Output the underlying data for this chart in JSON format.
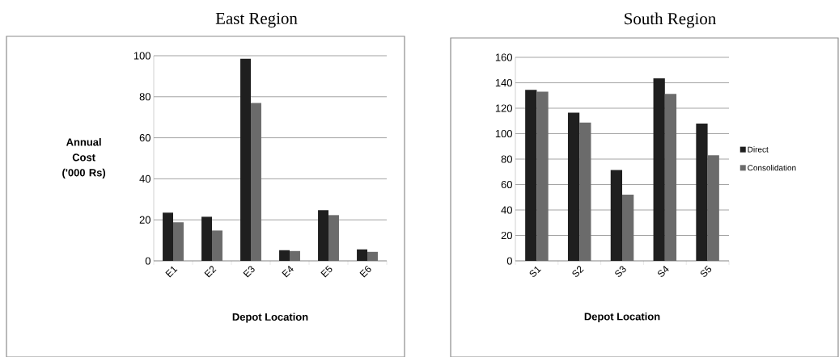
{
  "chart_data": [
    {
      "type": "bar",
      "title": "East Region",
      "xlabel": "Depot Location",
      "ylabel": "Annual Cost ('000 Rs)",
      "categories": [
        "E1",
        "E2",
        "E3",
        "E4",
        "E5",
        "E6"
      ],
      "series": [
        {
          "color": "#1f1f1f",
          "values": [
            23.5,
            21.5,
            98.5,
            5.2,
            24.7,
            5.6
          ]
        },
        {
          "color": "#6b6b6b",
          "values": [
            18.8,
            14.8,
            77,
            4.8,
            22.3,
            4.4
          ]
        }
      ],
      "ylim": [
        0,
        100
      ],
      "yticks": [
        0,
        20,
        40,
        60,
        80,
        100
      ],
      "grid": "y",
      "legend": false
    },
    {
      "type": "bar",
      "title": "South Region",
      "xlabel": "Depot Location",
      "categories": [
        "S1",
        "S2",
        "S3",
        "S4",
        "S5"
      ],
      "series": [
        {
          "name": "Direct",
          "color": "#1f1f1f",
          "values": [
            134.5,
            116.5,
            71.4,
            143.5,
            108
          ]
        },
        {
          "name": "Consolidation",
          "color": "#6b6b6b",
          "values": [
            133,
            108.7,
            52.1,
            131.3,
            83
          ]
        }
      ],
      "ylim": [
        0,
        160
      ],
      "yticks": [
        0,
        20,
        40,
        60,
        80,
        100,
        120,
        140,
        160
      ],
      "grid": "y",
      "legend": "right"
    }
  ]
}
